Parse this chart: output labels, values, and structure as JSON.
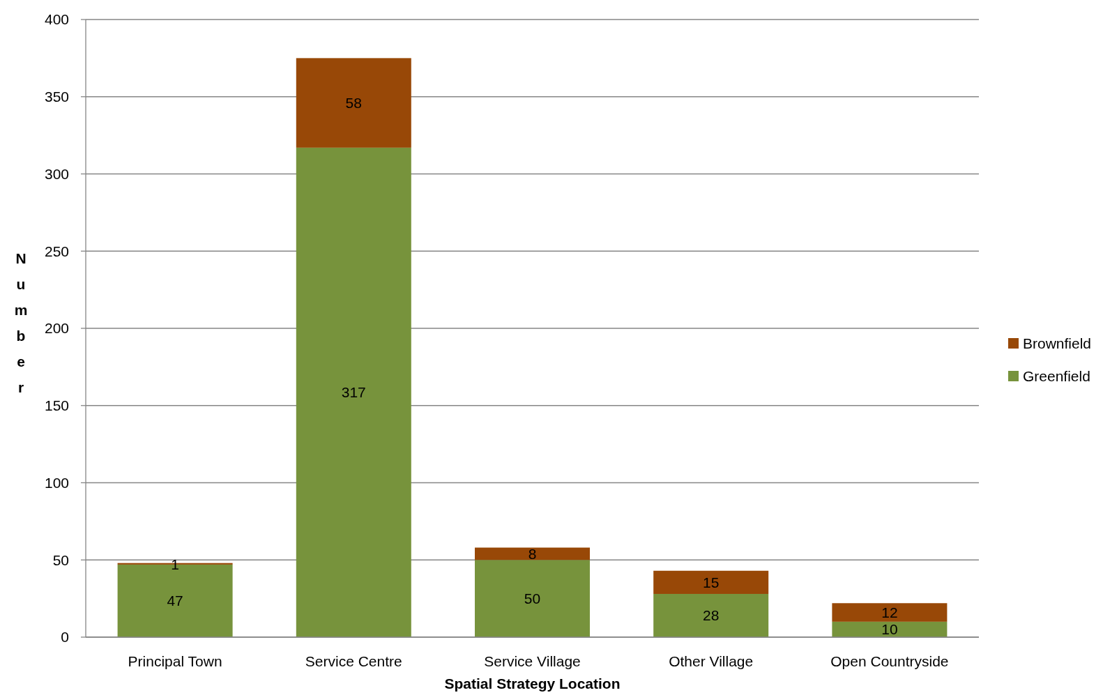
{
  "chart_data": {
    "type": "bar",
    "stacked": true,
    "xlabel": "Spatial Strategy Location",
    "ylabel": "Number",
    "categories": [
      "Principal Town",
      "Service Centre",
      "Service Village",
      "Other Village",
      "Open Countryside"
    ],
    "series": [
      {
        "name": "Greenfield",
        "color": "#77933c",
        "values": [
          47,
          317,
          50,
          28,
          10
        ]
      },
      {
        "name": "Brownfield",
        "color": "#984807",
        "values": [
          1,
          58,
          8,
          15,
          12
        ]
      }
    ],
    "ylim": [
      0,
      400
    ],
    "yticks": [
      0,
      50,
      100,
      150,
      200,
      250,
      300,
      350,
      400
    ],
    "grid": "y",
    "legend": "right",
    "data_labels": true
  }
}
